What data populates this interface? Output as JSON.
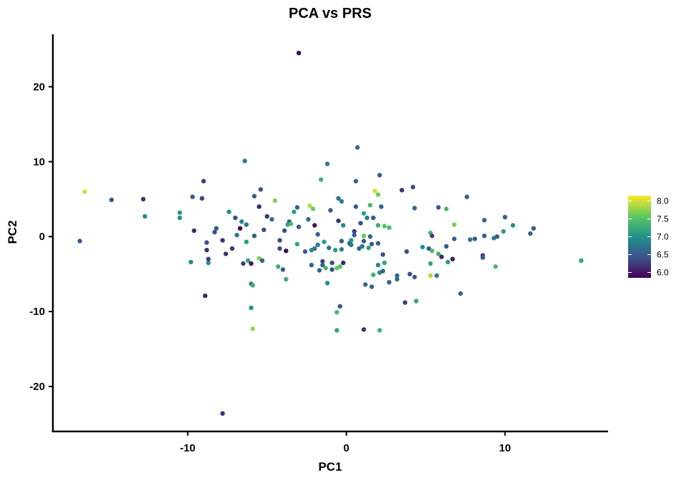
{
  "chart_data": {
    "type": "scatter",
    "title": "PCA vs PRS",
    "xlabel": "PC1",
    "ylabel": "PC2",
    "xlim": [
      -18.5,
      16.5
    ],
    "ylim": [
      -26.0,
      27.0
    ],
    "xticks": [
      -10,
      0,
      10
    ],
    "yticks": [
      -20,
      -10,
      0,
      10,
      20
    ],
    "grid": false,
    "colormap": "viridis",
    "color_range": [
      5.85,
      8.15
    ],
    "legend": {
      "placement": "right",
      "ticks": [
        6.0,
        6.5,
        7.0,
        7.5,
        8.0
      ]
    },
    "points": [
      [
        -3.0,
        24.5,
        5.9
      ],
      [
        -7.8,
        -23.6,
        6.2
      ],
      [
        -16.5,
        6.0,
        8.0
      ],
      [
        -16.8,
        -0.6,
        6.5
      ],
      [
        -14.8,
        4.9,
        6.5
      ],
      [
        -12.8,
        5.0,
        6.2
      ],
      [
        -12.7,
        2.7,
        6.9
      ],
      [
        -10.5,
        3.2,
        7.1
      ],
      [
        -10.5,
        2.5,
        7.0
      ],
      [
        -9.8,
        -3.4,
        6.9
      ],
      [
        -9.7,
        5.3,
        6.5
      ],
      [
        -9.6,
        0.8,
        6.1
      ],
      [
        -9.1,
        5.1,
        6.3
      ],
      [
        -9.0,
        7.4,
        6.3
      ],
      [
        -8.8,
        -1.8,
        6.2
      ],
      [
        -8.8,
        -0.8,
        6.4
      ],
      [
        -8.7,
        -3.5,
        7.0
      ],
      [
        -8.9,
        -7.9,
        6.1
      ],
      [
        -8.7,
        -3.0,
        6.3
      ],
      [
        -8.2,
        1.1,
        6.5
      ],
      [
        -8.3,
        0.6,
        6.4
      ],
      [
        -7.8,
        -0.5,
        6.2
      ],
      [
        -7.6,
        -2.3,
        6.2
      ],
      [
        -7.4,
        3.3,
        7.0
      ],
      [
        -7.2,
        -1.6,
        6.2
      ],
      [
        -7.0,
        2.5,
        6.4
      ],
      [
        -6.9,
        0.2,
        6.8
      ],
      [
        -6.7,
        1.1,
        5.9
      ],
      [
        -6.6,
        2.0,
        6.9
      ],
      [
        -6.5,
        -3.6,
        6.3
      ],
      [
        -6.4,
        10.1,
        6.8
      ],
      [
        -6.3,
        -0.7,
        7.1
      ],
      [
        -6.2,
        -3.2,
        7.2
      ],
      [
        -6.0,
        -3.6,
        6.0
      ],
      [
        -6.3,
        1.6,
        6.7
      ],
      [
        -5.8,
        5.4,
        6.5
      ],
      [
        -6.0,
        -6.3,
        6.7
      ],
      [
        -5.9,
        -6.5,
        7.3
      ],
      [
        -6.0,
        -9.5,
        7.0
      ],
      [
        -5.9,
        -12.3,
        7.8
      ],
      [
        -5.8,
        0.1,
        6.6
      ],
      [
        -5.5,
        4.0,
        6.1
      ],
      [
        -5.4,
        6.3,
        6.4
      ],
      [
        -5.5,
        -2.9,
        7.7
      ],
      [
        -5.3,
        -3.2,
        6.6
      ],
      [
        -5.2,
        0.9,
        6.4
      ],
      [
        -5.0,
        2.7,
        6.2
      ],
      [
        -4.7,
        2.3,
        6.7
      ],
      [
        -4.5,
        4.8,
        7.7
      ],
      [
        -4.2,
        -0.5,
        6.4
      ],
      [
        -4.3,
        -4.0,
        7.3
      ],
      [
        -4.0,
        -4.4,
        6.5
      ],
      [
        -4.2,
        -1.6,
        6.4
      ],
      [
        -3.9,
        0.8,
        6.4
      ],
      [
        -3.8,
        -1.9,
        5.9
      ],
      [
        -3.7,
        1.6,
        7.2
      ],
      [
        -3.6,
        2.0,
        6.6
      ],
      [
        -3.8,
        -5.7,
        7.3
      ],
      [
        -3.5,
        1.7,
        7.4
      ],
      [
        -3.3,
        3.3,
        7.1
      ],
      [
        -3.1,
        3.9,
        6.6
      ],
      [
        -3.0,
        1.3,
        6.5
      ],
      [
        -3.1,
        -1.0,
        7.2
      ],
      [
        -2.4,
        2.3,
        6.7
      ],
      [
        -2.6,
        -2.0,
        6.5
      ],
      [
        -2.3,
        4.1,
        7.9
      ],
      [
        -2.1,
        3.7,
        7.6
      ],
      [
        -2.2,
        -3.8,
        6.6
      ],
      [
        -2.0,
        -1.6,
        6.7
      ],
      [
        -2.0,
        1.5,
        6.0
      ],
      [
        -2.2,
        -1.8,
        6.9
      ],
      [
        -1.8,
        -1.1,
        6.8
      ],
      [
        -1.7,
        -4.5,
        6.6
      ],
      [
        -1.8,
        0.3,
        6.6
      ],
      [
        -1.6,
        7.6,
        7.3
      ],
      [
        -1.5,
        -3.8,
        6.6
      ],
      [
        -1.3,
        -4.2,
        7.4
      ],
      [
        -1.4,
        -0.7,
        7.1
      ],
      [
        -1.2,
        9.7,
        6.8
      ],
      [
        -1.0,
        3.5,
        6.5
      ],
      [
        -1.2,
        -6.2,
        7.0
      ],
      [
        -1.5,
        -3.3,
        6.3
      ],
      [
        -0.9,
        -3.5,
        6.4
      ],
      [
        -1.1,
        -1.5,
        6.7
      ],
      [
        -0.9,
        -4.4,
        6.4
      ],
      [
        -0.7,
        -1.8,
        7.1
      ],
      [
        -0.6,
        -4.2,
        7.6
      ],
      [
        -0.5,
        5.1,
        6.8
      ],
      [
        -0.5,
        2.1,
        6.2
      ],
      [
        -0.4,
        -9.3,
        6.5
      ],
      [
        -0.4,
        -4.0,
        7.5
      ],
      [
        -0.3,
        4.7,
        6.8
      ],
      [
        -0.2,
        -3.5,
        6.1
      ],
      [
        -0.2,
        1.5,
        7.0
      ],
      [
        -0.3,
        -1.7,
        6.9
      ],
      [
        -0.3,
        -0.6,
        6.5
      ],
      [
        -0.6,
        -10.1,
        7.4
      ],
      [
        -0.6,
        -12.5,
        7.2
      ],
      [
        0.2,
        -0.9,
        6.6
      ],
      [
        0.3,
        -0.5,
        7.0
      ],
      [
        0.3,
        -1.1,
        6.8
      ],
      [
        0.5,
        0.2,
        6.6
      ],
      [
        0.5,
        0.7,
        6.3
      ],
      [
        0.6,
        4.0,
        6.5
      ],
      [
        0.6,
        7.4,
        6.6
      ],
      [
        0.7,
        11.9,
        6.6
      ],
      [
        0.8,
        -1.6,
        6.6
      ],
      [
        0.9,
        1.8,
        6.4
      ],
      [
        1.0,
        -1.3,
        6.8
      ],
      [
        1.1,
        -0.6,
        6.5
      ],
      [
        1.1,
        3.1,
        7.2
      ],
      [
        1.1,
        0.1,
        7.6
      ],
      [
        1.1,
        -12.4,
        6.2
      ],
      [
        1.2,
        -6.4,
        6.6
      ],
      [
        1.3,
        2.5,
        6.8
      ],
      [
        1.4,
        -1.5,
        7.2
      ],
      [
        1.5,
        4.2,
        7.4
      ],
      [
        1.5,
        0.0,
        6.6
      ],
      [
        1.6,
        -6.7,
        6.6
      ],
      [
        1.6,
        -1.0,
        6.5
      ],
      [
        1.7,
        2.5,
        6.5
      ],
      [
        1.7,
        -5.1,
        7.3
      ],
      [
        1.8,
        6.1,
        8.0
      ],
      [
        2.0,
        -3.8,
        6.9
      ],
      [
        2.0,
        -0.9,
        6.5
      ],
      [
        2.0,
        1.5,
        7.3
      ],
      [
        2.0,
        5.6,
        7.6
      ],
      [
        2.1,
        8.2,
        6.5
      ],
      [
        2.1,
        -12.5,
        7.3
      ],
      [
        2.2,
        4.0,
        6.6
      ],
      [
        2.1,
        -4.8,
        6.9
      ],
      [
        2.3,
        -4.6,
        6.6
      ],
      [
        2.3,
        -2.4,
        6.4
      ],
      [
        2.4,
        1.4,
        7.5
      ],
      [
        2.4,
        -3.5,
        7.2
      ],
      [
        2.7,
        1.2,
        7.4
      ],
      [
        2.7,
        -6.1,
        6.6
      ],
      [
        3.2,
        -5.7,
        6.7
      ],
      [
        3.2,
        -5.2,
        6.6
      ],
      [
        3.5,
        6.2,
        6.2
      ],
      [
        3.7,
        -8.8,
        6.3
      ],
      [
        3.8,
        -2.0,
        6.4
      ],
      [
        4.0,
        -5.0,
        6.4
      ],
      [
        4.2,
        6.6,
        6.4
      ],
      [
        4.3,
        -5.4,
        6.5
      ],
      [
        4.3,
        3.8,
        6.6
      ],
      [
        4.4,
        -8.6,
        7.2
      ],
      [
        4.8,
        -1.4,
        7.0
      ],
      [
        5.2,
        -1.6,
        6.5
      ],
      [
        5.3,
        0.5,
        7.4
      ],
      [
        5.3,
        -5.2,
        7.9
      ],
      [
        5.4,
        0.1,
        6.3
      ],
      [
        5.4,
        -1.9,
        7.4
      ],
      [
        5.3,
        -3.6,
        7.2
      ],
      [
        5.8,
        -2.3,
        7.3
      ],
      [
        5.7,
        -5.2,
        6.8
      ],
      [
        5.8,
        3.9,
        6.5
      ],
      [
        6.0,
        -2.7,
        6.1
      ],
      [
        6.3,
        3.7,
        7.4
      ],
      [
        6.4,
        -3.4,
        7.1
      ],
      [
        6.3,
        -1.3,
        6.5
      ],
      [
        6.7,
        -3.0,
        6.0
      ],
      [
        6.8,
        1.6,
        7.7
      ],
      [
        6.8,
        -0.3,
        6.5
      ],
      [
        7.2,
        -7.6,
        6.6
      ],
      [
        7.6,
        5.3,
        6.6
      ],
      [
        7.8,
        -0.4,
        6.7
      ],
      [
        8.1,
        -0.3,
        6.5
      ],
      [
        8.6,
        -2.5,
        6.3
      ],
      [
        8.6,
        -2.8,
        6.5
      ],
      [
        8.7,
        0.1,
        6.6
      ],
      [
        8.7,
        2.2,
        6.6
      ],
      [
        9.3,
        -0.2,
        6.8
      ],
      [
        9.4,
        -4.0,
        7.4
      ],
      [
        9.5,
        0.0,
        6.5
      ],
      [
        9.9,
        0.7,
        7.1
      ],
      [
        10.0,
        2.6,
        6.6
      ],
      [
        10.5,
        1.5,
        7.0
      ],
      [
        11.6,
        0.4,
        6.6
      ],
      [
        11.8,
        1.1,
        6.5
      ],
      [
        14.8,
        -3.2,
        7.2
      ]
    ]
  }
}
